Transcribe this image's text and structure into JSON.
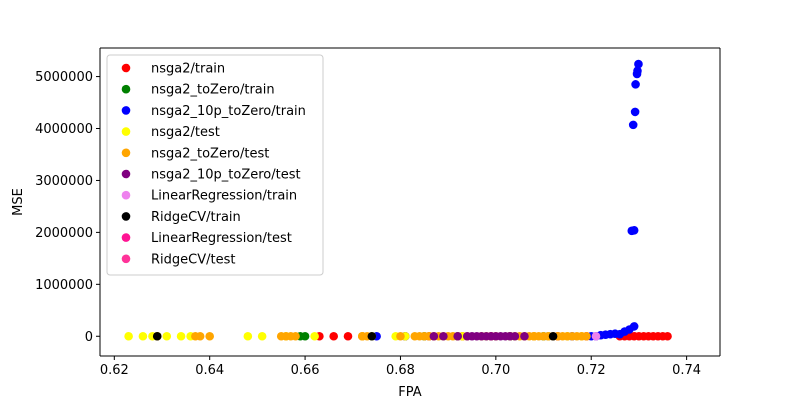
{
  "chart_data": {
    "type": "scatter",
    "title": "",
    "xlabel": "FPA",
    "ylabel": "MSE",
    "xlim": [
      0.617,
      0.747
    ],
    "ylim": [
      -380000,
      5550000
    ],
    "xticks": [
      0.62,
      0.64,
      0.66,
      0.68,
      0.7,
      0.72,
      0.74
    ],
    "xtick_labels": [
      "0.62",
      "0.64",
      "0.66",
      "0.68",
      "0.70",
      "0.72",
      "0.74"
    ],
    "yticks": [
      0,
      1000000,
      2000000,
      3000000,
      4000000,
      5000000
    ],
    "ytick_labels": [
      "0",
      "1000000",
      "2000000",
      "3000000",
      "4000000",
      "5000000"
    ],
    "grid": false,
    "legend_position": "top-left",
    "series": [
      {
        "name": "nsga2/train",
        "color": "#ff0000",
        "points": [
          [
            0.663,
            0
          ],
          [
            0.666,
            0
          ],
          [
            0.669,
            0
          ],
          [
            0.672,
            0
          ],
          [
            0.681,
            0
          ],
          [
            0.686,
            0
          ],
          [
            0.693,
            0
          ],
          [
            0.699,
            0
          ],
          [
            0.708,
            0
          ],
          [
            0.713,
            0
          ],
          [
            0.719,
            0
          ],
          [
            0.726,
            0
          ],
          [
            0.727,
            0
          ],
          [
            0.728,
            0
          ],
          [
            0.729,
            0
          ],
          [
            0.73,
            0
          ],
          [
            0.731,
            0
          ],
          [
            0.732,
            0
          ],
          [
            0.733,
            0
          ],
          [
            0.734,
            0
          ],
          [
            0.735,
            0
          ],
          [
            0.736,
            0
          ]
        ]
      },
      {
        "name": "nsga2_toZero/train",
        "color": "#008000",
        "points": [
          [
            0.659,
            0
          ],
          [
            0.66,
            0
          ],
          [
            0.685,
            0
          ],
          [
            0.692,
            0
          ],
          [
            0.703,
            0
          ],
          [
            0.71,
            0
          ]
        ]
      },
      {
        "name": "nsga2_10p_toZero/train",
        "color": "#0000ff",
        "points": [
          [
            0.675,
            0
          ],
          [
            0.681,
            0
          ],
          [
            0.711,
            0
          ],
          [
            0.716,
            0
          ],
          [
            0.72,
            0
          ],
          [
            0.721,
            0
          ],
          [
            0.722,
            20000
          ],
          [
            0.723,
            30000
          ],
          [
            0.724,
            40000
          ],
          [
            0.725,
            50000
          ],
          [
            0.726,
            40000
          ],
          [
            0.727,
            90000
          ],
          [
            0.728,
            130000
          ],
          [
            0.729,
            190000
          ],
          [
            0.7285,
            2030000
          ],
          [
            0.729,
            2040000
          ],
          [
            0.7288,
            4070000
          ],
          [
            0.7292,
            4320000
          ],
          [
            0.7293,
            4850000
          ],
          [
            0.7296,
            5050000
          ],
          [
            0.7297,
            5110000
          ],
          [
            0.7299,
            5240000
          ]
        ]
      },
      {
        "name": "nsga2/test",
        "color": "#ffff00",
        "points": [
          [
            0.623,
            0
          ],
          [
            0.626,
            0
          ],
          [
            0.628,
            0
          ],
          [
            0.629,
            0
          ],
          [
            0.631,
            0
          ],
          [
            0.634,
            0
          ],
          [
            0.636,
            0
          ],
          [
            0.648,
            0
          ],
          [
            0.651,
            0
          ],
          [
            0.656,
            0
          ],
          [
            0.662,
            0
          ],
          [
            0.672,
            0
          ],
          [
            0.674,
            0
          ],
          [
            0.679,
            0
          ],
          [
            0.681,
            0
          ],
          [
            0.689,
            0
          ],
          [
            0.693,
            0
          ],
          [
            0.698,
            0
          ],
          [
            0.704,
            0
          ],
          [
            0.708,
            0
          ],
          [
            0.711,
            0
          ],
          [
            0.715,
            0
          ],
          [
            0.718,
            0
          ]
        ]
      },
      {
        "name": "nsga2_toZero/test",
        "color": "#ffa500",
        "points": [
          [
            0.629,
            0
          ],
          [
            0.637,
            0
          ],
          [
            0.638,
            0
          ],
          [
            0.64,
            0
          ],
          [
            0.655,
            0
          ],
          [
            0.656,
            0
          ],
          [
            0.657,
            0
          ],
          [
            0.658,
            0
          ],
          [
            0.672,
            0
          ],
          [
            0.673,
            0
          ],
          [
            0.68,
            0
          ],
          [
            0.683,
            0
          ],
          [
            0.684,
            0
          ],
          [
            0.685,
            0
          ],
          [
            0.686,
            0
          ],
          [
            0.687,
            0
          ],
          [
            0.688,
            0
          ],
          [
            0.69,
            0
          ],
          [
            0.691,
            0
          ],
          [
            0.692,
            0
          ],
          [
            0.694,
            0
          ],
          [
            0.697,
            0
          ],
          [
            0.7,
            0
          ],
          [
            0.703,
            0
          ],
          [
            0.705,
            0
          ],
          [
            0.706,
            0
          ],
          [
            0.707,
            0
          ],
          [
            0.708,
            0
          ],
          [
            0.709,
            0
          ],
          [
            0.71,
            0
          ],
          [
            0.711,
            0
          ],
          [
            0.712,
            0
          ],
          [
            0.713,
            0
          ],
          [
            0.714,
            0
          ],
          [
            0.715,
            0
          ],
          [
            0.716,
            0
          ],
          [
            0.717,
            0
          ],
          [
            0.718,
            0
          ],
          [
            0.719,
            0
          ]
        ]
      },
      {
        "name": "nsga2_10p_toZero/test",
        "color": "#800080",
        "points": [
          [
            0.687,
            0
          ],
          [
            0.689,
            0
          ],
          [
            0.692,
            0
          ],
          [
            0.694,
            0
          ],
          [
            0.695,
            0
          ],
          [
            0.696,
            0
          ],
          [
            0.697,
            0
          ],
          [
            0.698,
            0
          ],
          [
            0.699,
            0
          ],
          [
            0.7,
            0
          ],
          [
            0.701,
            0
          ],
          [
            0.702,
            0
          ],
          [
            0.703,
            0
          ],
          [
            0.704,
            0
          ],
          [
            0.706,
            0
          ]
        ]
      },
      {
        "name": "LinearRegression/train",
        "color": "#ee82ee",
        "points": [
          [
            0.721,
            0
          ]
        ]
      },
      {
        "name": "RidgeCV/train",
        "color": "#000000",
        "points": [
          [
            0.629,
            0
          ],
          [
            0.674,
            0
          ],
          [
            0.712,
            0
          ]
        ]
      },
      {
        "name": "LinearRegression/test",
        "color": "#ff1493",
        "points": []
      },
      {
        "name": "RidgeCV/test",
        "color": "#ff3399",
        "points": []
      }
    ]
  }
}
